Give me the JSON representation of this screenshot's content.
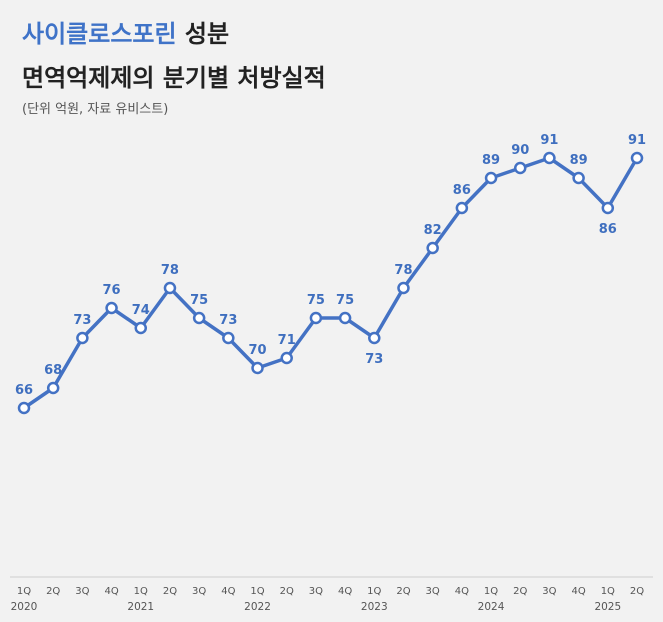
{
  "header": {
    "title_accent": "사이클로스포린",
    "title_rest": " 성분",
    "title_line2": "면역억제제의 분기별 처방실적",
    "subtitle": "(단위 억원, 자료 유비스트)"
  },
  "colors": {
    "line": "#4472c4",
    "accent": "#3f73c8",
    "label": "#3f6fbf",
    "background": "#f2f2f2",
    "marker_fill": "#ffffff"
  },
  "chart_data": {
    "type": "line",
    "categories": [
      "1Q",
      "2Q",
      "3Q",
      "4Q",
      "1Q",
      "2Q",
      "3Q",
      "4Q",
      "1Q",
      "2Q",
      "3Q",
      "4Q",
      "1Q",
      "2Q",
      "3Q",
      "4Q",
      "1Q",
      "2Q",
      "3Q",
      "4Q",
      "1Q",
      "2Q"
    ],
    "years": [
      {
        "label": "2020",
        "index": 0
      },
      {
        "label": "2021",
        "index": 4
      },
      {
        "label": "2022",
        "index": 8
      },
      {
        "label": "2023",
        "index": 12
      },
      {
        "label": "2024",
        "index": 16
      },
      {
        "label": "2025",
        "index": 20
      }
    ],
    "series": [
      {
        "values": [
          66,
          68,
          73,
          76,
          74,
          78,
          75,
          73,
          70,
          71,
          75,
          75,
          73,
          78,
          82,
          86,
          89,
          90,
          91,
          89,
          86,
          91
        ],
        "label_positions": [
          "above",
          "above",
          "above",
          "above",
          "above",
          "above",
          "above",
          "above",
          "above",
          "above",
          "above",
          "above",
          "below",
          "above",
          "above",
          "above",
          "above",
          "above",
          "above",
          "above",
          "below",
          "above"
        ]
      }
    ],
    "ylim": [
      47,
      97
    ],
    "xlabel": "",
    "ylabel": "",
    "grid": false,
    "legend": "none"
  }
}
